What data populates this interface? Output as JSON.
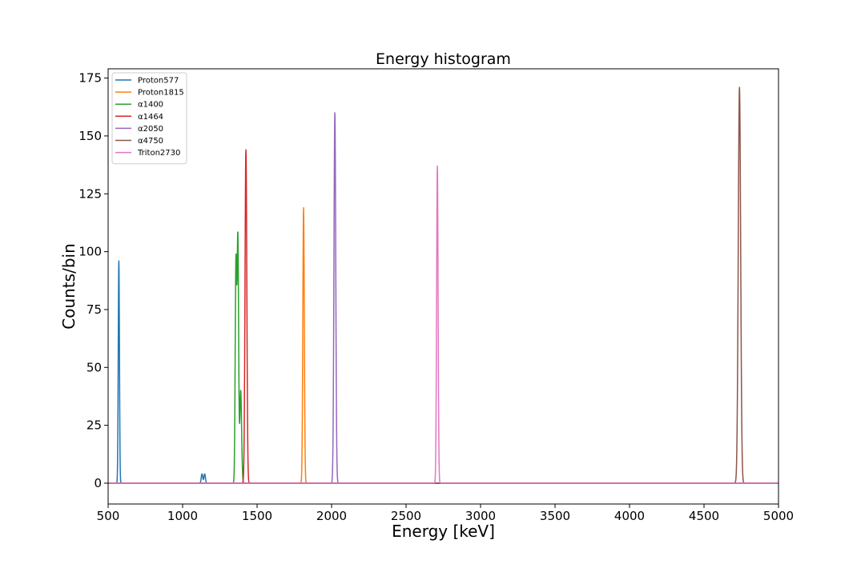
{
  "chart_data": {
    "type": "line",
    "title": "Energy histogram",
    "xlabel": "Energy [keV]",
    "ylabel": "Counts/bin",
    "xlim": [
      500,
      5000
    ],
    "ylim": [
      -9,
      179
    ],
    "x_ticks": [
      500,
      1000,
      1500,
      2000,
      2500,
      3000,
      3500,
      4000,
      4500,
      5000
    ],
    "y_ticks": [
      0,
      25,
      50,
      75,
      100,
      125,
      150,
      175
    ],
    "grid": false,
    "legend_position": "top-left",
    "series": [
      {
        "name": "Proton577",
        "color": "#1f77b4",
        "peaks": [
          {
            "center": 572,
            "height": 96,
            "width": 4
          },
          {
            "center": 1130,
            "height": 4,
            "width": 5
          },
          {
            "center": 1148,
            "height": 4,
            "width": 5
          }
        ]
      },
      {
        "name": "Proton1815",
        "color": "#ff7f0e",
        "peaks": [
          {
            "center": 1812,
            "height": 119,
            "width": 5
          }
        ]
      },
      {
        "name": "α1400",
        "color": "#2ca02c",
        "peaks": [
          {
            "center": 1358,
            "height": 95,
            "width": 5
          },
          {
            "center": 1371,
            "height": 105,
            "width": 5
          },
          {
            "center": 1390,
            "height": 40,
            "width": 6
          }
        ]
      },
      {
        "name": "α1464",
        "color": "#d62728",
        "peaks": [
          {
            "center": 1425,
            "height": 144,
            "width": 6
          }
        ]
      },
      {
        "name": "α2050",
        "color": "#9467bd",
        "peaks": [
          {
            "center": 2022,
            "height": 160,
            "width": 6
          }
        ]
      },
      {
        "name": "α4750",
        "color": "#8c564b",
        "peaks": [
          {
            "center": 4738,
            "height": 171,
            "width": 8
          }
        ]
      },
      {
        "name": "Triton2730",
        "color": "#e377c2",
        "peaks": [
          {
            "center": 2710,
            "height": 137,
            "width": 5
          }
        ]
      }
    ]
  }
}
